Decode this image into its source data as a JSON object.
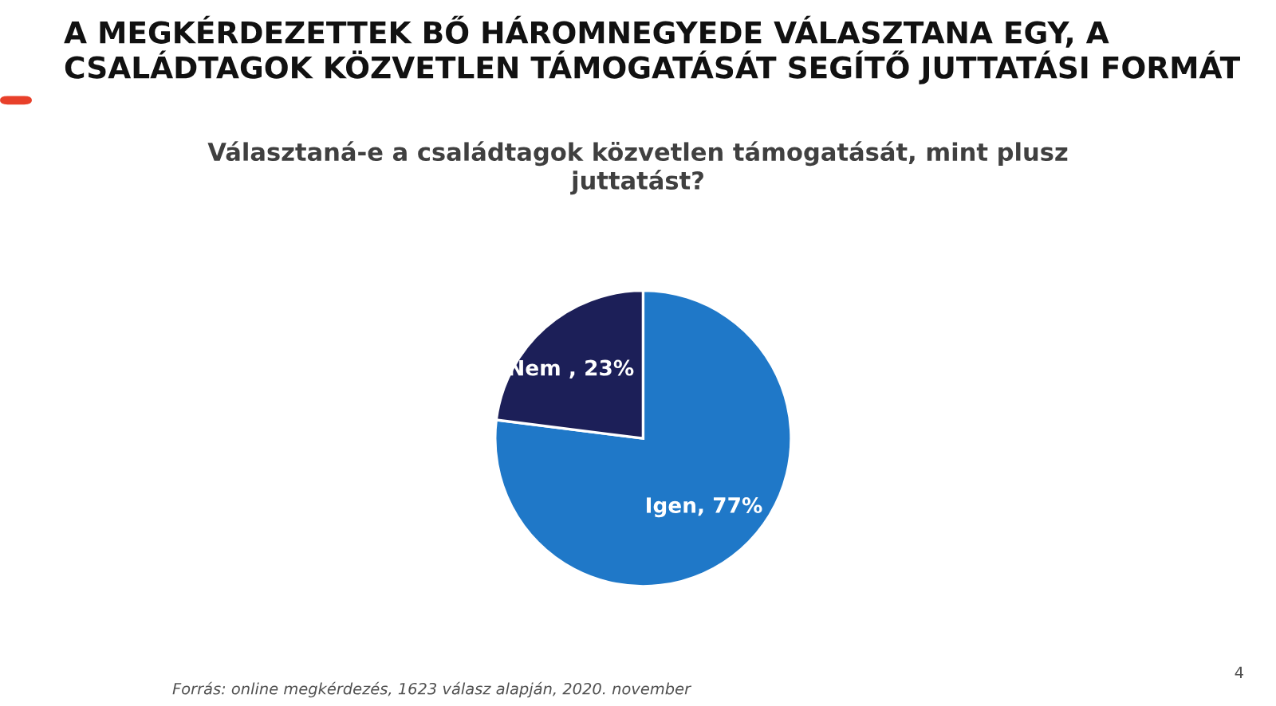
{
  "chart_data": {
    "type": "pie",
    "title": "A MEGKÉRDEZETTEK BŐ HÁROMNEGYEDE VÁLASZTANA EGY, A\nCSALÁDTAGOK KÖZVETLEN TÁMOGATÁSÁT SEGÍTŐ JUTTATÁSI FORMÁT",
    "subtitle": "Választaná-e a családtagok közvetlen támogatását, mint plusz\njuttatást?",
    "categories": [
      "Igen",
      "Nem "
    ],
    "values": [
      77,
      23
    ],
    "colors": [
      "#1f78c8",
      "#1c1f58"
    ],
    "value_labels": [
      "77%",
      "23%"
    ],
    "legend": false,
    "annotations": [
      "Forrás: online megkérdezés, 1623 válasz alapján, 2020. november",
      "4"
    ]
  }
}
